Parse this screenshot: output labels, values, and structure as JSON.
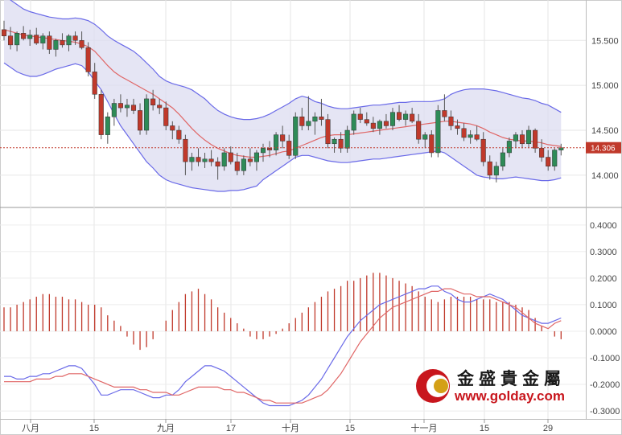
{
  "colors": {
    "up": "#2e8b57",
    "down": "#c0392b",
    "band_line": "#6a6ae8",
    "band_fill": "#dcdcf0",
    "ma_line": "#e06666",
    "dif_line": "#6a6ae8",
    "dea_line": "#e06666",
    "current_price_line": "#c0392b",
    "price_tag_bg": "#c0392b",
    "logo_red": "#c8161d",
    "logo_gold": "#d4a017"
  },
  "price_axis": {
    "ticks": [
      "15.500",
      "15.000",
      "14.500",
      "14.000"
    ],
    "min": 13.65,
    "max": 15.95
  },
  "current_price": {
    "value": 14.306,
    "label": "14.306"
  },
  "macd_axis": {
    "ticks": [
      "0.4000",
      "0.3000",
      "0.2000",
      "0.1000",
      "0.0000",
      "-0.1000",
      "-0.2000",
      "-0.3000"
    ],
    "min": -0.33,
    "max": 0.46
  },
  "x_axis": {
    "labels": [
      "八月",
      "15",
      "九月",
      "17",
      "十月",
      "15",
      "十一月",
      "15",
      "29"
    ]
  },
  "logo": {
    "name_cn": "金盛貴金屬",
    "url": "www.golday.com"
  },
  "chart_data": [
    {
      "type": "candlestick",
      "series_count": 1,
      "ylim": [
        13.65,
        15.95
      ],
      "candles": [
        [
          15.62,
          15.72,
          15.5,
          15.55
        ],
        [
          15.55,
          15.65,
          15.4,
          15.45
        ],
        [
          15.45,
          15.6,
          15.38,
          15.58
        ],
        [
          15.58,
          15.66,
          15.5,
          15.52
        ],
        [
          15.52,
          15.62,
          15.44,
          15.56
        ],
        [
          15.56,
          15.64,
          15.45,
          15.47
        ],
        [
          15.47,
          15.58,
          15.4,
          15.55
        ],
        [
          15.55,
          15.6,
          15.35,
          15.4
        ],
        [
          15.4,
          15.52,
          15.32,
          15.5
        ],
        [
          15.5,
          15.58,
          15.42,
          15.45
        ],
        [
          15.45,
          15.57,
          15.38,
          15.55
        ],
        [
          15.55,
          15.6,
          15.45,
          15.5
        ],
        [
          15.5,
          15.6,
          15.4,
          15.42
        ],
        [
          15.42,
          15.48,
          15.1,
          15.15
        ],
        [
          15.15,
          15.25,
          14.85,
          14.9
        ],
        [
          14.9,
          14.95,
          14.4,
          14.45
        ],
        [
          14.45,
          14.7,
          14.35,
          14.65
        ],
        [
          14.65,
          14.85,
          14.55,
          14.8
        ],
        [
          14.8,
          14.9,
          14.7,
          14.75
        ],
        [
          14.75,
          14.85,
          14.65,
          14.78
        ],
        [
          14.78,
          14.85,
          14.68,
          14.72
        ],
        [
          14.72,
          14.8,
          14.45,
          14.5
        ],
        [
          14.5,
          14.9,
          14.45,
          14.85
        ],
        [
          14.85,
          14.95,
          14.72,
          14.78
        ],
        [
          14.78,
          14.85,
          14.68,
          14.75
        ],
        [
          14.75,
          14.82,
          14.5,
          14.55
        ],
        [
          14.55,
          14.6,
          14.4,
          14.5
        ],
        [
          14.5,
          14.55,
          14.35,
          14.4
        ],
        [
          14.4,
          14.45,
          14.0,
          14.15
        ],
        [
          14.15,
          14.25,
          14.05,
          14.2
        ],
        [
          14.2,
          14.3,
          14.1,
          14.15
        ],
        [
          14.15,
          14.25,
          14.08,
          14.18
        ],
        [
          14.18,
          14.28,
          14.1,
          14.15
        ],
        [
          14.15,
          14.2,
          13.95,
          14.1
        ],
        [
          14.1,
          14.3,
          14.05,
          14.25
        ],
        [
          14.25,
          14.32,
          14.12,
          14.15
        ],
        [
          14.15,
          14.25,
          14.0,
          14.05
        ],
        [
          14.05,
          14.22,
          14.0,
          14.18
        ],
        [
          14.18,
          14.3,
          14.1,
          14.15
        ],
        [
          14.15,
          14.28,
          14.05,
          14.25
        ],
        [
          14.25,
          14.35,
          14.15,
          14.3
        ],
        [
          14.3,
          14.38,
          14.2,
          14.28
        ],
        [
          14.28,
          14.48,
          14.22,
          14.45
        ],
        [
          14.45,
          14.55,
          14.3,
          14.38
        ],
        [
          14.38,
          14.45,
          14.18,
          14.22
        ],
        [
          14.22,
          14.7,
          14.18,
          14.65
        ],
        [
          14.65,
          14.75,
          14.5,
          14.55
        ],
        [
          14.55,
          14.88,
          14.5,
          14.6
        ],
        [
          14.6,
          14.7,
          14.45,
          14.65
        ],
        [
          14.65,
          14.85,
          14.55,
          14.62
        ],
        [
          14.62,
          14.68,
          14.3,
          14.35
        ],
        [
          14.35,
          14.42,
          14.25,
          14.4
        ],
        [
          14.4,
          14.48,
          14.25,
          14.3
        ],
        [
          14.3,
          14.55,
          14.25,
          14.5
        ],
        [
          14.5,
          14.72,
          14.45,
          14.68
        ],
        [
          14.68,
          14.75,
          14.58,
          14.62
        ],
        [
          14.62,
          14.7,
          14.55,
          14.58
        ],
        [
          14.58,
          14.65,
          14.48,
          14.52
        ],
        [
          14.52,
          14.62,
          14.45,
          14.6
        ],
        [
          14.6,
          14.68,
          14.52,
          14.55
        ],
        [
          14.55,
          14.75,
          14.5,
          14.7
        ],
        [
          14.7,
          14.78,
          14.6,
          14.62
        ],
        [
          14.62,
          14.72,
          14.55,
          14.68
        ],
        [
          14.68,
          14.75,
          14.58,
          14.6
        ],
        [
          14.6,
          14.68,
          14.35,
          14.4
        ],
        [
          14.4,
          14.48,
          14.3,
          14.45
        ],
        [
          14.45,
          14.5,
          14.2,
          14.25
        ],
        [
          14.25,
          14.78,
          14.2,
          14.72
        ],
        [
          14.72,
          14.9,
          14.6,
          14.65
        ],
        [
          14.65,
          14.72,
          14.5,
          14.55
        ],
        [
          14.55,
          14.62,
          14.45,
          14.52
        ],
        [
          14.52,
          14.58,
          14.38,
          14.42
        ],
        [
          14.42,
          14.5,
          14.35,
          14.45
        ],
        [
          14.45,
          14.55,
          14.38,
          14.4
        ],
        [
          14.4,
          14.48,
          14.1,
          14.15
        ],
        [
          14.15,
          14.22,
          13.95,
          14.0
        ],
        [
          14.0,
          14.15,
          13.92,
          14.1
        ],
        [
          14.1,
          14.3,
          14.05,
          14.25
        ],
        [
          14.25,
          14.42,
          14.2,
          14.38
        ],
        [
          14.38,
          14.48,
          14.3,
          14.45
        ],
        [
          14.45,
          14.5,
          14.3,
          14.35
        ],
        [
          14.35,
          14.55,
          14.3,
          14.5
        ],
        [
          14.5,
          14.52,
          14.25,
          14.3
        ],
        [
          14.3,
          14.4,
          14.15,
          14.2
        ],
        [
          14.2,
          14.28,
          14.05,
          14.1
        ],
        [
          14.1,
          14.3,
          14.05,
          14.28
        ],
        [
          14.28,
          14.35,
          14.22,
          14.306
        ]
      ],
      "bollinger_upper": [
        16.0,
        15.95,
        15.9,
        15.85,
        15.82,
        15.8,
        15.78,
        15.76,
        15.75,
        15.74,
        15.74,
        15.75,
        15.74,
        15.72,
        15.68,
        15.62,
        15.55,
        15.5,
        15.46,
        15.42,
        15.38,
        15.32,
        15.25,
        15.18,
        15.1,
        15.05,
        15.02,
        15.0,
        14.98,
        14.95,
        14.9,
        14.85,
        14.78,
        14.72,
        14.68,
        14.65,
        14.63,
        14.62,
        14.62,
        14.63,
        14.65,
        14.68,
        14.72,
        14.76,
        14.8,
        14.85,
        14.88,
        14.86,
        14.82,
        14.8,
        14.77,
        14.75,
        14.74,
        14.74,
        14.75,
        14.76,
        14.77,
        14.78,
        14.78,
        14.79,
        14.8,
        14.81,
        14.81,
        14.82,
        14.82,
        14.82,
        14.82,
        14.83,
        14.85,
        14.9,
        14.93,
        14.95,
        14.96,
        14.96,
        14.96,
        14.95,
        14.94,
        14.92,
        14.9,
        14.88,
        14.86,
        14.85,
        14.83,
        14.8,
        14.78,
        14.74,
        14.7
      ],
      "bollinger_lower": [
        15.25,
        15.2,
        15.15,
        15.12,
        15.1,
        15.1,
        15.12,
        15.15,
        15.18,
        15.2,
        15.22,
        15.24,
        15.22,
        15.15,
        15.05,
        14.95,
        14.82,
        14.68,
        14.55,
        14.45,
        14.35,
        14.25,
        14.15,
        14.08,
        14.0,
        13.95,
        13.92,
        13.9,
        13.88,
        13.86,
        13.85,
        13.84,
        13.83,
        13.82,
        13.82,
        13.83,
        13.83,
        13.84,
        13.86,
        13.88,
        13.95,
        14.0,
        14.05,
        14.1,
        14.15,
        14.2,
        14.22,
        14.22,
        14.2,
        14.18,
        14.16,
        14.15,
        14.14,
        14.14,
        14.15,
        14.16,
        14.17,
        14.18,
        14.18,
        14.19,
        14.2,
        14.21,
        14.22,
        14.23,
        14.24,
        14.25,
        14.26,
        14.27,
        14.25,
        14.2,
        14.15,
        14.1,
        14.05,
        14.0,
        13.98,
        13.97,
        13.96,
        13.96,
        13.97,
        13.98,
        13.97,
        13.96,
        13.95,
        13.94,
        13.94,
        13.95,
        13.97
      ],
      "moving_average": [
        15.62,
        15.6,
        15.58,
        15.56,
        15.55,
        15.54,
        15.53,
        15.52,
        15.51,
        15.5,
        15.49,
        15.48,
        15.46,
        15.43,
        15.38,
        15.3,
        15.22,
        15.15,
        15.1,
        15.06,
        15.02,
        14.98,
        14.94,
        14.9,
        14.85,
        14.8,
        14.75,
        14.68,
        14.6,
        14.52,
        14.45,
        14.39,
        14.34,
        14.3,
        14.27,
        14.24,
        14.22,
        14.21,
        14.2,
        14.2,
        14.21,
        14.22,
        14.24,
        14.26,
        14.27,
        14.3,
        14.33,
        14.36,
        14.39,
        14.42,
        14.44,
        14.45,
        14.45,
        14.45,
        14.46,
        14.47,
        14.48,
        14.49,
        14.5,
        14.51,
        14.52,
        14.53,
        14.54,
        14.55,
        14.56,
        14.57,
        14.58,
        14.59,
        14.6,
        14.6,
        14.59,
        14.58,
        14.57,
        14.55,
        14.52,
        14.48,
        14.45,
        14.42,
        14.4,
        14.39,
        14.38,
        14.38,
        14.37,
        14.36,
        14.34,
        14.33,
        14.32
      ]
    },
    {
      "type": "macd",
      "ylim": [
        -0.33,
        0.46
      ],
      "histogram": [
        0.09,
        0.09,
        0.1,
        0.11,
        0.12,
        0.13,
        0.14,
        0.14,
        0.13,
        0.13,
        0.12,
        0.12,
        0.11,
        0.1,
        0.1,
        0.09,
        0.06,
        0.04,
        0.02,
        -0.02,
        -0.05,
        -0.07,
        -0.06,
        -0.03,
        0.0,
        0.04,
        0.08,
        0.11,
        0.14,
        0.15,
        0.16,
        0.14,
        0.12,
        0.09,
        0.07,
        0.05,
        0.03,
        0.01,
        -0.02,
        -0.03,
        -0.03,
        -0.02,
        -0.01,
        0.01,
        0.03,
        0.05,
        0.07,
        0.09,
        0.11,
        0.13,
        0.15,
        0.16,
        0.17,
        0.19,
        0.19,
        0.2,
        0.21,
        0.22,
        0.22,
        0.21,
        0.2,
        0.19,
        0.18,
        0.17,
        0.15,
        0.13,
        0.12,
        0.11,
        0.12,
        0.13,
        0.13,
        0.13,
        0.13,
        0.12,
        0.12,
        0.12,
        0.11,
        0.11,
        0.11,
        0.1,
        0.09,
        0.08,
        0.05,
        0.02,
        0.0,
        -0.02,
        -0.03
      ],
      "dif": [
        -0.17,
        -0.17,
        -0.18,
        -0.18,
        -0.17,
        -0.17,
        -0.16,
        -0.16,
        -0.15,
        -0.14,
        -0.13,
        -0.13,
        -0.14,
        -0.17,
        -0.2,
        -0.24,
        -0.24,
        -0.23,
        -0.22,
        -0.22,
        -0.22,
        -0.23,
        -0.24,
        -0.25,
        -0.25,
        -0.24,
        -0.24,
        -0.22,
        -0.19,
        -0.17,
        -0.15,
        -0.13,
        -0.13,
        -0.14,
        -0.15,
        -0.17,
        -0.19,
        -0.21,
        -0.23,
        -0.25,
        -0.27,
        -0.28,
        -0.28,
        -0.28,
        -0.28,
        -0.27,
        -0.26,
        -0.24,
        -0.21,
        -0.18,
        -0.14,
        -0.1,
        -0.06,
        -0.02,
        0.01,
        0.04,
        0.06,
        0.08,
        0.1,
        0.11,
        0.12,
        0.13,
        0.14,
        0.15,
        0.16,
        0.16,
        0.17,
        0.17,
        0.15,
        0.14,
        0.12,
        0.11,
        0.11,
        0.12,
        0.13,
        0.14,
        0.13,
        0.12,
        0.1,
        0.08,
        0.06,
        0.05,
        0.04,
        0.03,
        0.03,
        0.04,
        0.05
      ],
      "dea": [
        -0.19,
        -0.19,
        -0.19,
        -0.19,
        -0.19,
        -0.18,
        -0.18,
        -0.18,
        -0.17,
        -0.17,
        -0.16,
        -0.16,
        -0.16,
        -0.17,
        -0.18,
        -0.19,
        -0.2,
        -0.21,
        -0.21,
        -0.21,
        -0.21,
        -0.22,
        -0.22,
        -0.23,
        -0.23,
        -0.23,
        -0.24,
        -0.24,
        -0.23,
        -0.22,
        -0.21,
        -0.21,
        -0.21,
        -0.21,
        -0.22,
        -0.22,
        -0.23,
        -0.23,
        -0.24,
        -0.25,
        -0.26,
        -0.26,
        -0.27,
        -0.27,
        -0.27,
        -0.27,
        -0.27,
        -0.26,
        -0.25,
        -0.24,
        -0.22,
        -0.19,
        -0.16,
        -0.12,
        -0.08,
        -0.04,
        -0.01,
        0.02,
        0.05,
        0.07,
        0.09,
        0.1,
        0.11,
        0.12,
        0.13,
        0.14,
        0.15,
        0.15,
        0.16,
        0.16,
        0.15,
        0.14,
        0.14,
        0.13,
        0.13,
        0.13,
        0.12,
        0.11,
        0.1,
        0.09,
        0.07,
        0.05,
        0.03,
        0.02,
        0.01,
        0.03,
        0.04
      ]
    }
  ]
}
